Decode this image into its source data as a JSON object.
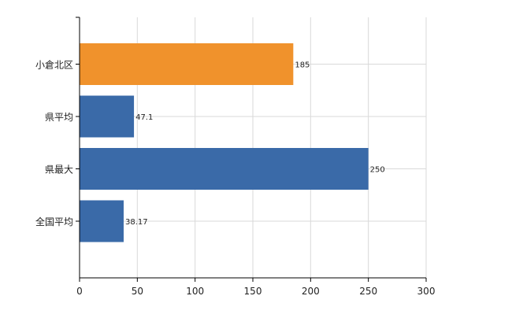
{
  "chart_data": {
    "type": "bar",
    "orientation": "horizontal",
    "categories": [
      "小倉北区",
      "県平均",
      "県最大",
      "全国平均"
    ],
    "values": [
      185,
      47.1,
      250,
      38.17
    ],
    "value_labels": [
      "185",
      "47.1",
      "250",
      "38.17"
    ],
    "colors": [
      "#f0922c",
      "#3a6aa8",
      "#3a6aa8",
      "#3a6aa8"
    ],
    "xlim": [
      0,
      300
    ],
    "xticks": [
      0,
      50,
      100,
      150,
      200,
      250,
      300
    ],
    "grid": true,
    "title": "",
    "xlabel": "",
    "ylabel": ""
  }
}
